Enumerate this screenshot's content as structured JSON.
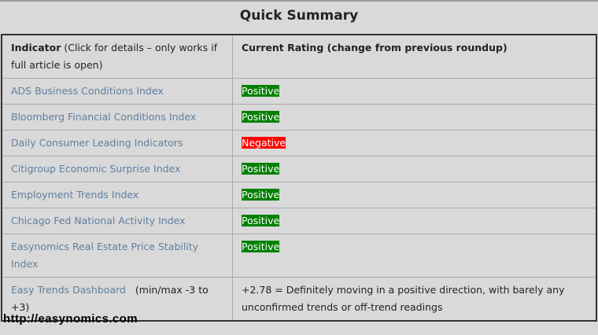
{
  "title": "Quick Summary",
  "header": {
    "indicator_bold": "Indicator",
    "indicator_note": " (Click for details – only works if full article is open)",
    "rating": "Current Rating (change from previous roundup)"
  },
  "rows": [
    {
      "name": "ADS Business Conditions Index",
      "rating": "Positive",
      "status": "positive"
    },
    {
      "name": "Bloomberg Financial Conditions Index",
      "rating": "Positive",
      "status": "positive"
    },
    {
      "name": "Daily Consumer Leading Indicators",
      "rating": "Negative",
      "status": "negative"
    },
    {
      "name": "Citigroup Economic Surprise Index",
      "rating": "Positive",
      "status": "positive"
    },
    {
      "name": "Employment Trends Index",
      "rating": "Positive",
      "status": "positive"
    },
    {
      "name": "Chicago Fed National Activity Index",
      "rating": "Positive",
      "status": "positive"
    },
    {
      "name": "Easynomics Real Estate Price Stability Index",
      "rating": "Positive",
      "status": "positive"
    }
  ],
  "dashboard": {
    "name": "Easy Trends Dashboard",
    "range": "(min/max -3 to +3)",
    "value": "+2.78 = Definitely moving in a positive direction, with barely any unconfirmed trends or off-trend readings"
  },
  "footer": "http://easynomics.com",
  "colors": {
    "positive": "#008000",
    "negative": "#ff0000",
    "link": "#5f7f9f"
  }
}
